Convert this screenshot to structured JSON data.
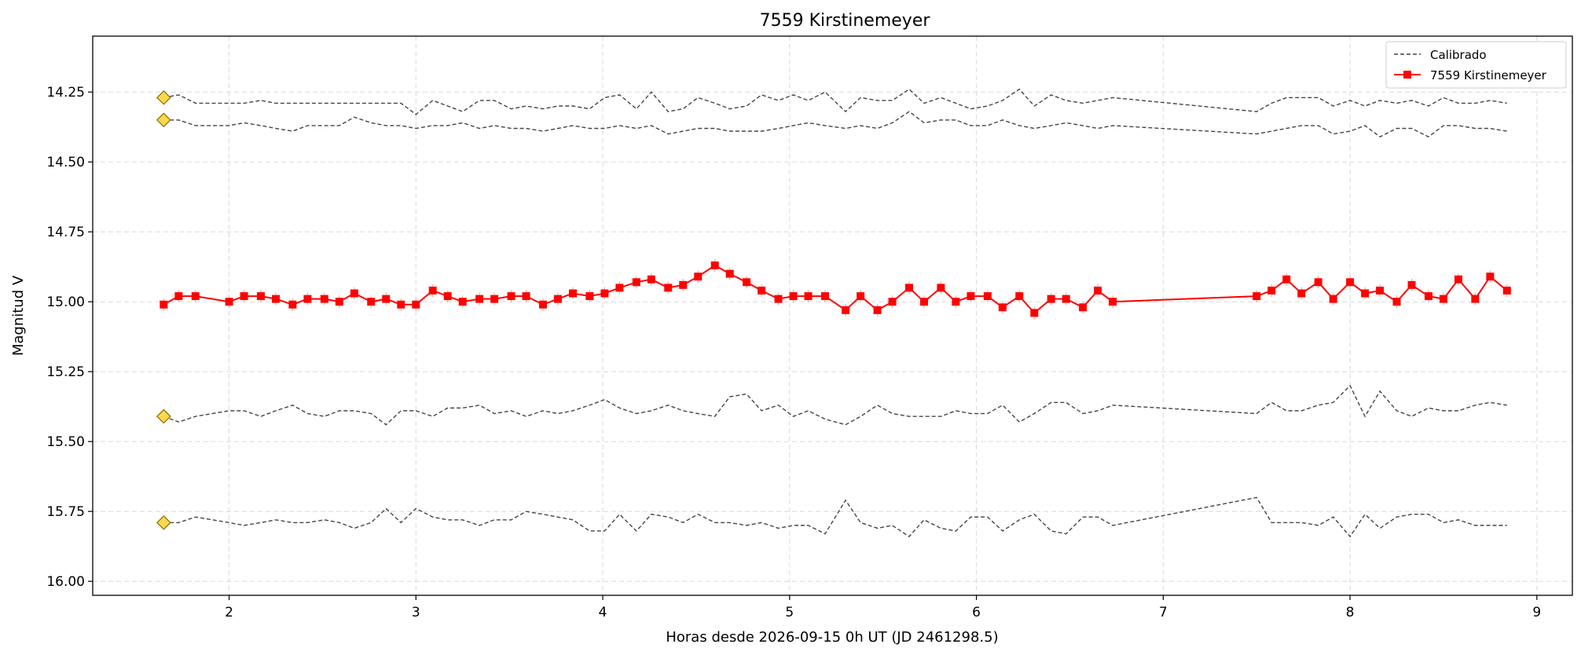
{
  "chart_data": {
    "type": "line",
    "title": "7559 Kirstinemeyer",
    "xlabel": "Horas desde 2026-09-15 0h UT (JD 2461298.5)",
    "ylabel": "Magnitud V",
    "xlim": [
      1.27,
      9.19
    ],
    "ylim": [
      16.05,
      14.05
    ],
    "y_inverted": true,
    "grid": true,
    "legend_position": "top-right",
    "x_ticks": [
      2,
      3,
      4,
      5,
      6,
      7,
      8,
      9
    ],
    "y_ticks": [
      14.25,
      14.5,
      14.75,
      15.0,
      15.25,
      15.5,
      15.75,
      16.0
    ],
    "y_tick_labels": [
      "14.25",
      "14.50",
      "14.75",
      "15.00",
      "15.25",
      "15.50",
      "15.75",
      "16.00"
    ],
    "legend": [
      {
        "label": "Calibrado",
        "style": "dashed",
        "color": "#444444"
      },
      {
        "label": "7559 Kirstinemeyer",
        "style": "solid-square",
        "color": "#ff0000"
      }
    ],
    "target_series": {
      "name": "7559 Kirstinemeyer",
      "color": "#ff0000",
      "x": [
        1.65,
        1.73,
        1.82,
        2.0,
        2.08,
        2.17,
        2.25,
        2.34,
        2.42,
        2.51,
        2.59,
        2.67,
        2.76,
        2.84,
        2.92,
        3.0,
        3.09,
        3.17,
        3.25,
        3.34,
        3.42,
        3.51,
        3.59,
        3.68,
        3.76,
        3.84,
        3.93,
        4.01,
        4.09,
        4.18,
        4.26,
        4.35,
        4.43,
        4.51,
        4.6,
        4.68,
        4.77,
        4.85,
        4.94,
        5.02,
        5.1,
        5.19,
        5.3,
        5.38,
        5.47,
        5.55,
        5.64,
        5.72,
        5.81,
        5.89,
        5.97,
        6.06,
        6.14,
        6.23,
        6.31,
        6.4,
        6.48,
        6.57,
        6.65,
        6.73,
        7.5,
        7.58,
        7.66,
        7.74,
        7.83,
        7.91,
        8.0,
        8.08,
        8.16,
        8.25,
        8.33,
        8.42,
        8.5,
        8.58,
        8.67,
        8.75,
        8.84
      ],
      "y": [
        15.01,
        14.98,
        14.98,
        15.0,
        14.98,
        14.98,
        14.99,
        15.01,
        14.99,
        14.99,
        15.0,
        14.97,
        15.0,
        14.99,
        15.01,
        15.01,
        14.96,
        14.98,
        15.0,
        14.99,
        14.99,
        14.98,
        14.98,
        15.01,
        14.99,
        14.97,
        14.98,
        14.97,
        14.95,
        14.93,
        14.92,
        14.95,
        14.94,
        14.91,
        14.87,
        14.9,
        14.93,
        14.96,
        14.99,
        14.98,
        14.98,
        14.98,
        15.03,
        14.98,
        15.03,
        15.0,
        14.95,
        15.0,
        14.95,
        15.0,
        14.98,
        14.98,
        15.02,
        14.98,
        15.04,
        14.99,
        14.99,
        15.02,
        14.96,
        15.0,
        14.98,
        14.96,
        14.92,
        14.97,
        14.93,
        14.99,
        14.93,
        14.97,
        14.96,
        15.0,
        14.94,
        14.98,
        14.99,
        14.92,
        14.99,
        14.91,
        14.96
      ]
    },
    "calibration_series": [
      {
        "name": "Calibrado",
        "start_marker_y": 14.27,
        "x": [
          1.65,
          1.73,
          1.82,
          2.0,
          2.08,
          2.17,
          2.25,
          2.34,
          2.42,
          2.51,
          2.59,
          2.67,
          2.76,
          2.84,
          2.92,
          3.0,
          3.09,
          3.17,
          3.25,
          3.34,
          3.42,
          3.51,
          3.59,
          3.68,
          3.76,
          3.84,
          3.93,
          4.01,
          4.09,
          4.18,
          4.26,
          4.35,
          4.43,
          4.51,
          4.6,
          4.68,
          4.77,
          4.85,
          4.94,
          5.02,
          5.1,
          5.19,
          5.3,
          5.38,
          5.47,
          5.55,
          5.64,
          5.72,
          5.81,
          5.89,
          5.97,
          6.06,
          6.14,
          6.23,
          6.31,
          6.4,
          6.48,
          6.57,
          6.65,
          6.73,
          7.5,
          7.58,
          7.66,
          7.74,
          7.83,
          7.91,
          8.0,
          8.08,
          8.16,
          8.25,
          8.33,
          8.42,
          8.5,
          8.58,
          8.67,
          8.75,
          8.84
        ],
        "y": [
          14.27,
          14.26,
          14.29,
          14.29,
          14.29,
          14.28,
          14.29,
          14.29,
          14.29,
          14.29,
          14.29,
          14.29,
          14.29,
          14.29,
          14.29,
          14.33,
          14.28,
          14.3,
          14.32,
          14.28,
          14.28,
          14.31,
          14.3,
          14.31,
          14.3,
          14.3,
          14.31,
          14.27,
          14.26,
          14.31,
          14.25,
          14.32,
          14.31,
          14.27,
          14.29,
          14.31,
          14.3,
          14.26,
          14.28,
          14.26,
          14.28,
          14.25,
          14.32,
          14.27,
          14.28,
          14.28,
          14.24,
          14.29,
          14.27,
          14.29,
          14.31,
          14.3,
          14.28,
          14.24,
          14.3,
          14.26,
          14.28,
          14.29,
          14.28,
          14.27,
          14.32,
          14.29,
          14.27,
          14.27,
          14.27,
          14.3,
          14.28,
          14.3,
          14.28,
          14.29,
          14.28,
          14.3,
          14.27,
          14.29,
          14.29,
          14.28,
          14.29
        ]
      },
      {
        "name": "Calibrado",
        "start_marker_y": 14.35,
        "x": [
          1.65,
          1.73,
          1.82,
          2.0,
          2.08,
          2.17,
          2.25,
          2.34,
          2.42,
          2.51,
          2.59,
          2.67,
          2.76,
          2.84,
          2.92,
          3.0,
          3.09,
          3.17,
          3.25,
          3.34,
          3.42,
          3.51,
          3.59,
          3.68,
          3.76,
          3.84,
          3.93,
          4.01,
          4.09,
          4.18,
          4.26,
          4.35,
          4.43,
          4.51,
          4.6,
          4.68,
          4.77,
          4.85,
          4.94,
          5.02,
          5.1,
          5.19,
          5.3,
          5.38,
          5.47,
          5.55,
          5.64,
          5.72,
          5.81,
          5.89,
          5.97,
          6.06,
          6.14,
          6.23,
          6.31,
          6.4,
          6.48,
          6.57,
          6.65,
          6.73,
          7.5,
          7.58,
          7.66,
          7.74,
          7.83,
          7.91,
          8.0,
          8.08,
          8.16,
          8.25,
          8.33,
          8.42,
          8.5,
          8.58,
          8.67,
          8.75,
          8.84
        ],
        "y": [
          14.35,
          14.35,
          14.37,
          14.37,
          14.36,
          14.37,
          14.38,
          14.39,
          14.37,
          14.37,
          14.37,
          14.34,
          14.36,
          14.37,
          14.37,
          14.38,
          14.37,
          14.37,
          14.36,
          14.38,
          14.37,
          14.38,
          14.38,
          14.39,
          14.38,
          14.37,
          14.38,
          14.38,
          14.37,
          14.38,
          14.37,
          14.4,
          14.39,
          14.38,
          14.38,
          14.39,
          14.39,
          14.39,
          14.38,
          14.37,
          14.36,
          14.37,
          14.38,
          14.37,
          14.38,
          14.36,
          14.32,
          14.36,
          14.35,
          14.35,
          14.37,
          14.37,
          14.35,
          14.37,
          14.38,
          14.37,
          14.36,
          14.37,
          14.38,
          14.37,
          14.4,
          14.39,
          14.38,
          14.37,
          14.37,
          14.4,
          14.39,
          14.37,
          14.41,
          14.38,
          14.38,
          14.41,
          14.37,
          14.37,
          14.38,
          14.38,
          14.39
        ]
      },
      {
        "name": "Calibrado",
        "start_marker_y": 15.41,
        "x": [
          1.65,
          1.73,
          1.82,
          2.0,
          2.08,
          2.17,
          2.25,
          2.34,
          2.42,
          2.51,
          2.59,
          2.67,
          2.76,
          2.84,
          2.92,
          3.0,
          3.09,
          3.17,
          3.25,
          3.34,
          3.42,
          3.51,
          3.59,
          3.68,
          3.76,
          3.84,
          3.93,
          4.01,
          4.09,
          4.18,
          4.26,
          4.35,
          4.43,
          4.51,
          4.6,
          4.68,
          4.77,
          4.85,
          4.94,
          5.02,
          5.1,
          5.19,
          5.3,
          5.38,
          5.47,
          5.55,
          5.64,
          5.72,
          5.81,
          5.89,
          5.97,
          6.06,
          6.14,
          6.23,
          6.31,
          6.4,
          6.48,
          6.57,
          6.65,
          6.73,
          7.5,
          7.58,
          7.66,
          7.74,
          7.83,
          7.91,
          8.0,
          8.08,
          8.16,
          8.25,
          8.33,
          8.42,
          8.5,
          8.58,
          8.67,
          8.75,
          8.84
        ],
        "y": [
          15.41,
          15.43,
          15.41,
          15.39,
          15.39,
          15.41,
          15.39,
          15.37,
          15.4,
          15.41,
          15.39,
          15.39,
          15.4,
          15.44,
          15.39,
          15.39,
          15.41,
          15.38,
          15.38,
          15.37,
          15.4,
          15.39,
          15.41,
          15.39,
          15.4,
          15.39,
          15.37,
          15.35,
          15.38,
          15.4,
          15.39,
          15.37,
          15.39,
          15.4,
          15.41,
          15.34,
          15.33,
          15.39,
          15.37,
          15.41,
          15.39,
          15.42,
          15.44,
          15.41,
          15.37,
          15.4,
          15.41,
          15.41,
          15.41,
          15.39,
          15.4,
          15.4,
          15.37,
          15.43,
          15.4,
          15.36,
          15.36,
          15.4,
          15.39,
          15.37,
          15.4,
          15.36,
          15.39,
          15.39,
          15.37,
          15.36,
          15.3,
          15.41,
          15.32,
          15.39,
          15.41,
          15.38,
          15.39,
          15.39,
          15.37,
          15.36,
          15.37
        ]
      },
      {
        "name": "Calibrado",
        "start_marker_y": 15.79,
        "x": [
          1.65,
          1.73,
          1.82,
          2.0,
          2.08,
          2.17,
          2.25,
          2.34,
          2.42,
          2.51,
          2.59,
          2.67,
          2.76,
          2.84,
          2.92,
          3.0,
          3.09,
          3.17,
          3.25,
          3.34,
          3.42,
          3.51,
          3.59,
          3.68,
          3.76,
          3.84,
          3.93,
          4.01,
          4.09,
          4.18,
          4.26,
          4.35,
          4.43,
          4.51,
          4.6,
          4.68,
          4.77,
          4.85,
          4.94,
          5.02,
          5.1,
          5.19,
          5.3,
          5.38,
          5.47,
          5.55,
          5.64,
          5.72,
          5.81,
          5.89,
          5.97,
          6.06,
          6.14,
          6.23,
          6.31,
          6.4,
          6.48,
          6.57,
          6.65,
          6.73,
          7.5,
          7.58,
          7.66,
          7.74,
          7.83,
          7.91,
          8.0,
          8.08,
          8.16,
          8.25,
          8.33,
          8.42,
          8.5,
          8.58,
          8.67,
          8.75,
          8.84
        ],
        "y": [
          15.79,
          15.79,
          15.77,
          15.79,
          15.8,
          15.79,
          15.78,
          15.79,
          15.79,
          15.78,
          15.79,
          15.81,
          15.79,
          15.74,
          15.79,
          15.74,
          15.77,
          15.78,
          15.78,
          15.8,
          15.78,
          15.78,
          15.75,
          15.76,
          15.77,
          15.78,
          15.82,
          15.82,
          15.76,
          15.82,
          15.76,
          15.77,
          15.79,
          15.76,
          15.79,
          15.79,
          15.8,
          15.79,
          15.81,
          15.8,
          15.8,
          15.83,
          15.71,
          15.79,
          15.81,
          15.8,
          15.84,
          15.78,
          15.81,
          15.82,
          15.77,
          15.77,
          15.82,
          15.78,
          15.76,
          15.82,
          15.83,
          15.77,
          15.77,
          15.8,
          15.7,
          15.79,
          15.79,
          15.79,
          15.8,
          15.77,
          15.84,
          15.76,
          15.81,
          15.77,
          15.76,
          15.76,
          15.79,
          15.78,
          15.8,
          15.8,
          15.8
        ]
      }
    ]
  },
  "colors": {
    "target": "#ff0000",
    "calibration": "#444444",
    "marker_fill": "#ffd84d",
    "marker_edge": "#8a6d00",
    "grid": "#d9d9d9"
  }
}
